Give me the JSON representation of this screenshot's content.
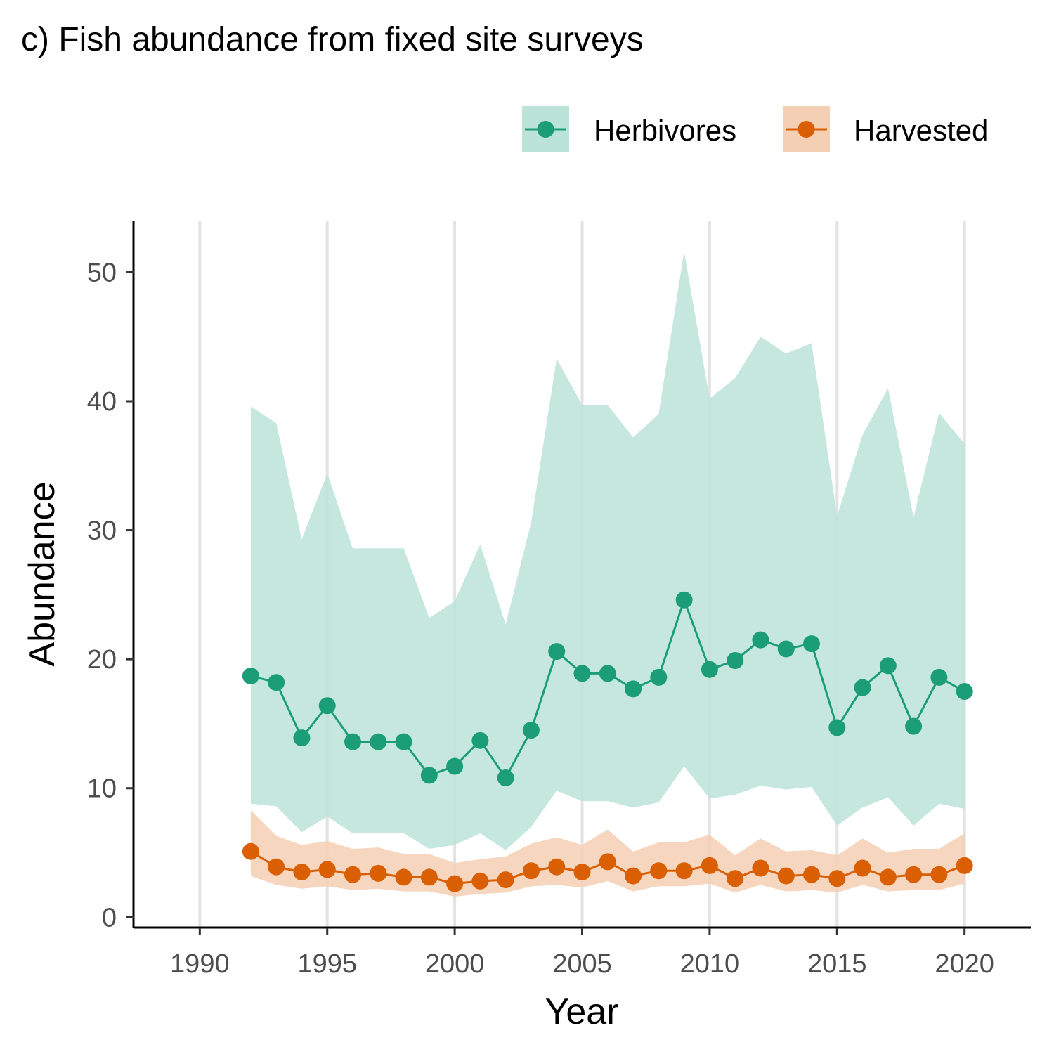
{
  "chart_data": {
    "type": "line",
    "title": "c) Fish abundance from fixed site surveys",
    "xlabel": "Year",
    "ylabel": "Abundance",
    "xlim": [
      1987.4,
      2022.6
    ],
    "ylim": [
      -0.8,
      54
    ],
    "x_ticks": [
      1990,
      1995,
      2000,
      2005,
      2010,
      2015,
      2020
    ],
    "y_ticks": [
      0,
      10,
      20,
      30,
      40,
      50
    ],
    "grid": "vertical major gridlines only",
    "legend_position": "top-right",
    "x": [
      1992,
      1993,
      1994,
      1995,
      1996,
      1997,
      1998,
      1999,
      2000,
      2001,
      2002,
      2003,
      2004,
      2005,
      2006,
      2007,
      2008,
      2009,
      2010,
      2011,
      2012,
      2013,
      2014,
      2015,
      2016,
      2017,
      2018,
      2019,
      2020
    ],
    "series": [
      {
        "name": "Herbivores",
        "color": "#1b9e77",
        "ribbon_color": "#bce3d8",
        "values": [
          18.7,
          18.2,
          13.9,
          16.4,
          13.6,
          13.6,
          13.6,
          11.0,
          11.7,
          13.7,
          10.8,
          14.5,
          20.6,
          18.9,
          18.9,
          17.7,
          18.6,
          24.6,
          19.2,
          19.9,
          21.5,
          20.8,
          21.2,
          14.7,
          17.8,
          19.5,
          14.8,
          18.6,
          17.5
        ],
        "lower": [
          8.8,
          8.6,
          6.6,
          7.8,
          6.5,
          6.5,
          6.5,
          5.3,
          5.6,
          6.5,
          5.2,
          7.0,
          9.8,
          9.0,
          9.0,
          8.5,
          8.9,
          11.7,
          9.2,
          9.5,
          10.2,
          9.9,
          10.1,
          7.1,
          8.5,
          9.3,
          7.1,
          8.8,
          8.4
        ],
        "upper": [
          39.6,
          38.3,
          29.3,
          34.4,
          28.6,
          28.6,
          28.6,
          23.2,
          24.5,
          28.9,
          22.7,
          30.6,
          43.3,
          39.7,
          39.7,
          37.2,
          39.0,
          51.6,
          40.2,
          41.8,
          45.0,
          43.7,
          44.5,
          31.1,
          37.4,
          41.0,
          31.0,
          39.1,
          36.7
        ]
      },
      {
        "name": "Harvested",
        "color": "#d95f02",
        "ribbon_color": "#f5cfb3",
        "values": [
          5.1,
          3.9,
          3.5,
          3.7,
          3.3,
          3.4,
          3.1,
          3.1,
          2.6,
          2.8,
          2.9,
          3.6,
          3.9,
          3.5,
          4.3,
          3.2,
          3.6,
          3.6,
          4.0,
          3.0,
          3.8,
          3.2,
          3.3,
          3.0,
          3.8,
          3.1,
          3.3,
          3.3,
          4.0
        ],
        "lower": [
          3.2,
          2.5,
          2.2,
          2.4,
          2.1,
          2.2,
          2.0,
          2.0,
          1.6,
          1.8,
          1.9,
          2.4,
          2.5,
          2.3,
          2.8,
          2.0,
          2.4,
          2.4,
          2.6,
          1.9,
          2.5,
          2.0,
          2.1,
          1.9,
          2.5,
          2.0,
          2.1,
          2.1,
          2.6
        ],
        "upper": [
          8.3,
          6.3,
          5.6,
          5.9,
          5.3,
          5.4,
          4.9,
          4.9,
          4.2,
          4.5,
          4.7,
          5.7,
          6.2,
          5.6,
          6.8,
          5.1,
          5.8,
          5.8,
          6.4,
          4.8,
          6.1,
          5.1,
          5.2,
          4.8,
          6.1,
          5.0,
          5.3,
          5.3,
          6.5
        ]
      }
    ]
  }
}
